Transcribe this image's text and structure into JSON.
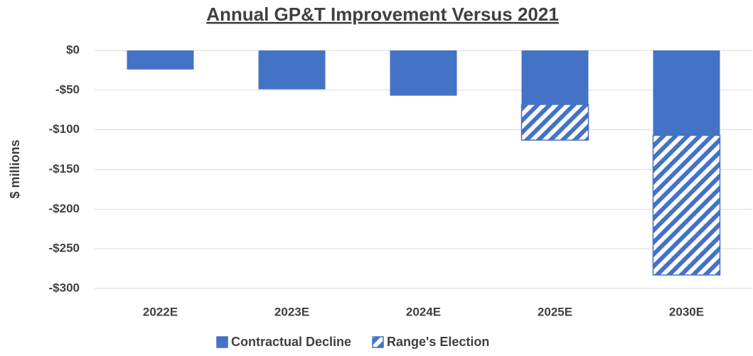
{
  "chart_data": {
    "type": "stacked_bar",
    "title": "Annual GP&T Improvement Versus 2021",
    "ylabel": "$ millions",
    "categories": [
      "2022E",
      "2023E",
      "2024E",
      "2025E",
      "2030E"
    ],
    "series": [
      {
        "name": "Contractual Decline",
        "color": "#4472c4",
        "pattern": "solid",
        "values": [
          -24,
          -49,
          -57,
          -68,
          -107
        ]
      },
      {
        "name": "Range's Election",
        "color": "#4472c4",
        "pattern": "hatch",
        "values": [
          0,
          0,
          0,
          -45,
          -176
        ]
      }
    ],
    "ylim": [
      -300,
      0
    ],
    "yticks": [
      {
        "value": 0,
        "label": "$0"
      },
      {
        "value": -50,
        "label": "-$50"
      },
      {
        "value": -100,
        "label": "-$100"
      },
      {
        "value": -150,
        "label": "-$150"
      },
      {
        "value": -200,
        "label": "-$200"
      },
      {
        "value": -250,
        "label": "-$250"
      },
      {
        "value": -300,
        "label": "-$300"
      }
    ],
    "grid": true,
    "legend": "bottom"
  }
}
